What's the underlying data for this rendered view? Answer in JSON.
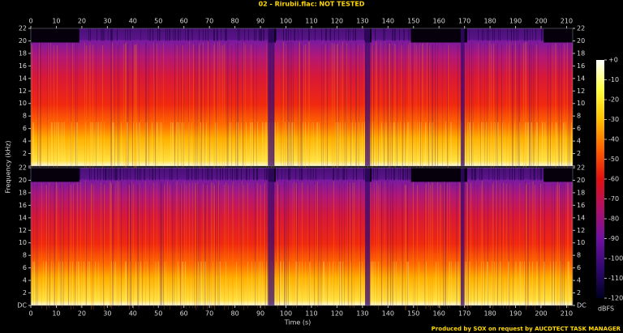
{
  "chart_data": {
    "type": "spectrogram",
    "title": "02 - Rirubii.flac: NOT TESTED",
    "x_label": "Time (s)",
    "y_label": "Frequency (kHz)",
    "xlim": [
      0,
      212.4
    ],
    "xticks": [
      0,
      10,
      20,
      30,
      40,
      50,
      60,
      70,
      80,
      90,
      100,
      110,
      120,
      130,
      140,
      150,
      160,
      170,
      180,
      190,
      200,
      210
    ],
    "ylim": [
      0,
      22
    ],
    "yticks": [
      {
        "value": 0,
        "label": "DC"
      },
      2,
      4,
      6,
      8,
      10,
      12,
      14,
      16,
      18,
      20,
      22
    ],
    "colorbar": {
      "label": "dBFS",
      "clim": [
        -120,
        0
      ],
      "ticks": [
        {
          "value": 0,
          "label": "+0"
        },
        -10,
        -20,
        -30,
        -40,
        -50,
        -60,
        -70,
        -80,
        -90,
        -100,
        -110,
        -120
      ],
      "colors": [
        "#ffffff",
        "#ffff40",
        "#ffc000",
        "#ff6000",
        "#e01010",
        "#b0106a",
        "#7010a0",
        "#300870",
        "#000020"
      ]
    },
    "footer": "Produced by SOX on request by AUCDTECT TASK MANAGER"
  }
}
